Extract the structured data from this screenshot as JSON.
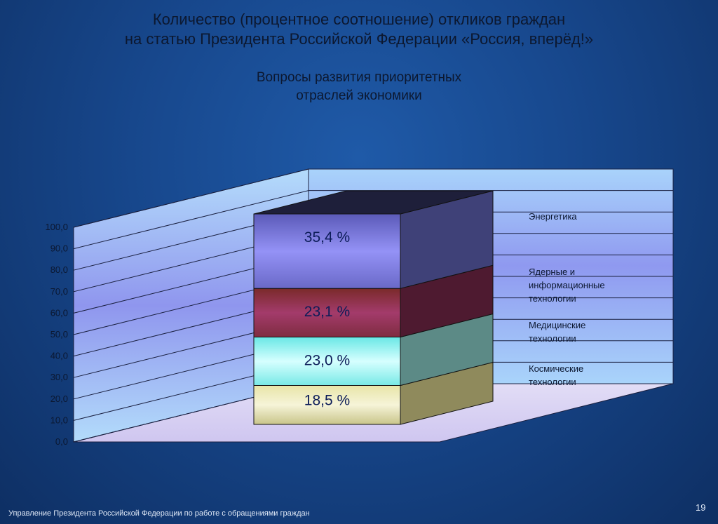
{
  "title_line1": "Количество (процентное соотношение) откликов граждан",
  "title_line2": "на статью Президента Российской Федерации «Россия, вперёд!»",
  "subtitle_line1": "Вопросы развития приоритетных",
  "subtitle_line2": "отраслей экономики",
  "footer": "Управление Президента Российской Федерации по работе с обращениями граждан",
  "page_number": "19",
  "chart_data": {
    "type": "bar",
    "stacked": true,
    "three_d": true,
    "ylim": [
      0,
      100
    ],
    "y_ticks": [
      "0,0",
      "10,0",
      "20,0",
      "30,0",
      "40,0",
      "50,0",
      "60,0",
      "70,0",
      "80,0",
      "90,0",
      "100,0"
    ],
    "series": [
      {
        "name": "Космические технологии",
        "value": 18.5,
        "label": "18,5 %",
        "color": "#f3f1cf"
      },
      {
        "name": "Медицинские технологии",
        "value": 23.0,
        "label": "23,0 %",
        "color": "#c8fcfc"
      },
      {
        "name": "Ядерные и информационные технологии",
        "value": 23.1,
        "label": "23,1 %",
        "color": "#a23a6a"
      },
      {
        "name": "Энергетика",
        "value": 35.4,
        "label": "35,4 %",
        "color": "#8a88f0"
      }
    ],
    "legend_lines": [
      [
        "Энергетика"
      ],
      [
        "Ядерные и",
        "информационные",
        "технологии"
      ],
      [
        "Медицинские",
        "технологии"
      ],
      [
        "Космические",
        "технологии"
      ]
    ],
    "grid": true
  }
}
